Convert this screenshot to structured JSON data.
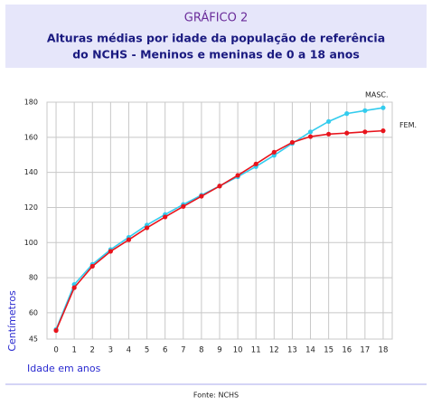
{
  "chart_data": {
    "type": "line",
    "header": "GRÁFICO 2",
    "title": "Alturas médias por idade da população de referência",
    "subtitle": "do NCHS - Meninos e meninas de 0 a 18 anos",
    "xlabel": "Idade em anos",
    "ylabel": "Centímetros",
    "source": "Fonte: NCHS",
    "x": [
      0,
      1,
      2,
      3,
      4,
      5,
      6,
      7,
      8,
      9,
      10,
      11,
      12,
      13,
      14,
      15,
      16,
      17,
      18
    ],
    "series": [
      {
        "name": "MASC.",
        "color": "#33ccee",
        "values": [
          50.5,
          76.1,
          87.6,
          96,
          103,
          110,
          116,
          121.7,
          127,
          132.2,
          137.5,
          143.3,
          149.7,
          156.5,
          163.1,
          169,
          173.5,
          175.2,
          176.8
        ]
      },
      {
        "name": "FEM.",
        "color": "#e8141c",
        "values": [
          49.9,
          74.3,
          86.5,
          95,
          101.6,
          108.4,
          114.6,
          120.6,
          126.4,
          132.2,
          138.3,
          144.8,
          151.5,
          157.1,
          160.4,
          161.8,
          162.4,
          163.1,
          163.7
        ]
      }
    ],
    "xlim": [
      -0.5,
      18.5
    ],
    "xticks": [
      0,
      1,
      2,
      3,
      4,
      5,
      6,
      7,
      8,
      9,
      10,
      11,
      12,
      13,
      14,
      15,
      16,
      17,
      18
    ],
    "ylim": [
      45,
      180
    ],
    "yticks": [
      45,
      60,
      80,
      100,
      120,
      140,
      160,
      180
    ],
    "grid": true
  }
}
